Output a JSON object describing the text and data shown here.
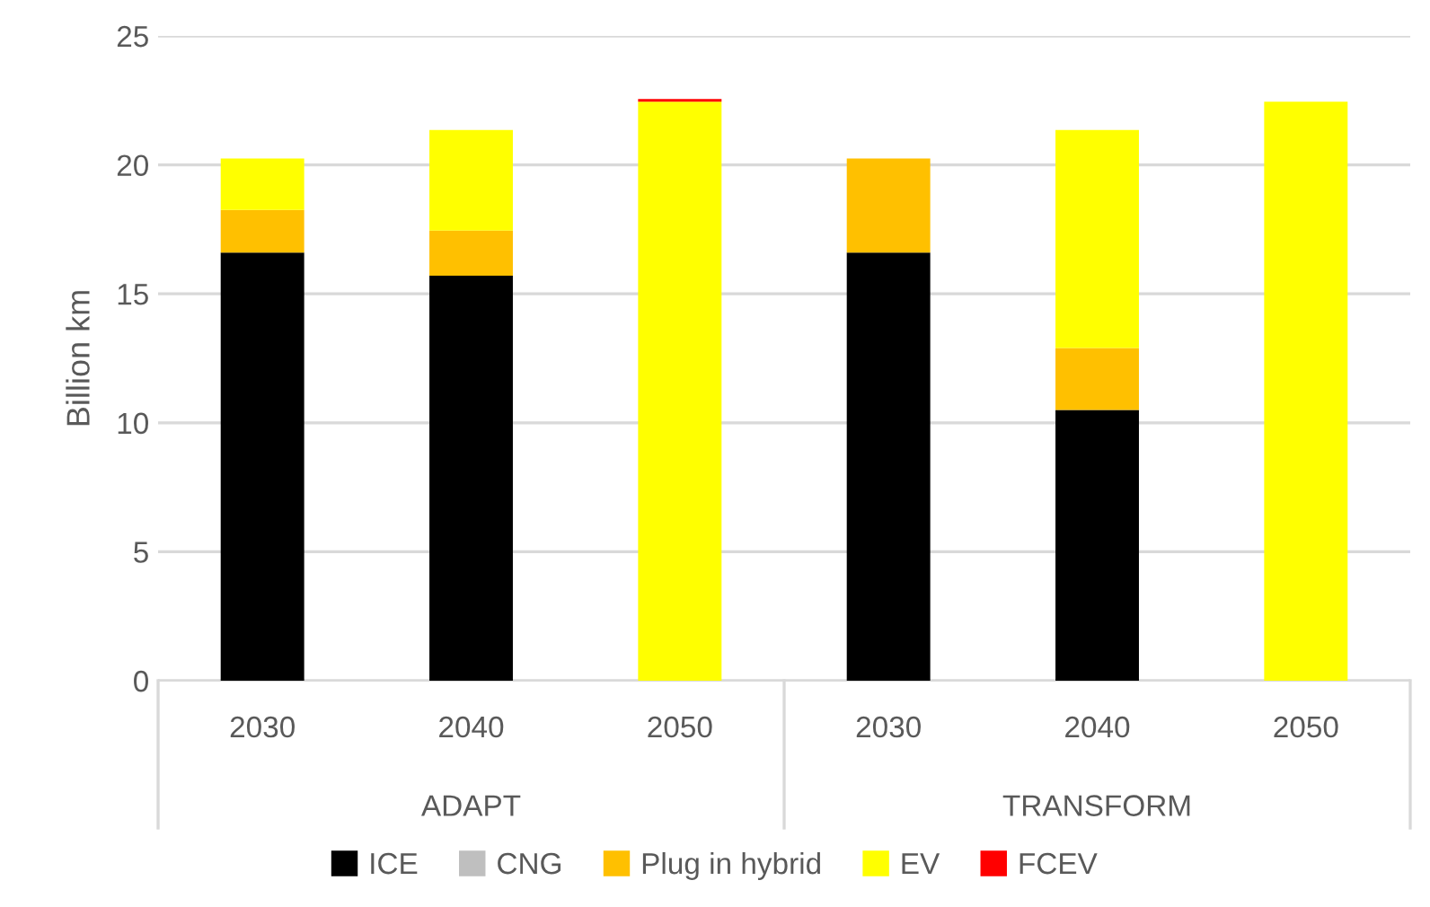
{
  "chart_data": {
    "type": "bar",
    "stacked": true,
    "ylabel": "Billion km",
    "categories": [
      "2030",
      "2040",
      "2050",
      "2030",
      "2040",
      "2050"
    ],
    "series": [
      {
        "name": "ICE",
        "color": "#000000",
        "values": [
          16.6,
          15.7,
          0,
          16.6,
          10.5,
          0
        ]
      },
      {
        "name": "CNG",
        "color": "#bfbfbf",
        "values": [
          0,
          0,
          0,
          0,
          0,
          0
        ]
      },
      {
        "name": "Plug in hybrid",
        "color": "#ffc000",
        "values": [
          1.65,
          1.75,
          0,
          3.65,
          2.4,
          0
        ]
      },
      {
        "name": "EV",
        "color": "#ffff00",
        "values": [
          2.0,
          3.9,
          22.45,
          0,
          8.45,
          22.45
        ]
      },
      {
        "name": "FCEV",
        "color": "#ff0000",
        "values": [
          0,
          0,
          0.1,
          0,
          0,
          0
        ]
      }
    ],
    "annotations": [
      "ADAPT",
      "TRANSFORM"
    ],
    "ylim": [
      0,
      25
    ],
    "yticks": [
      0,
      5,
      10,
      15,
      20,
      25
    ],
    "grid": "y",
    "legend": "bottom"
  }
}
